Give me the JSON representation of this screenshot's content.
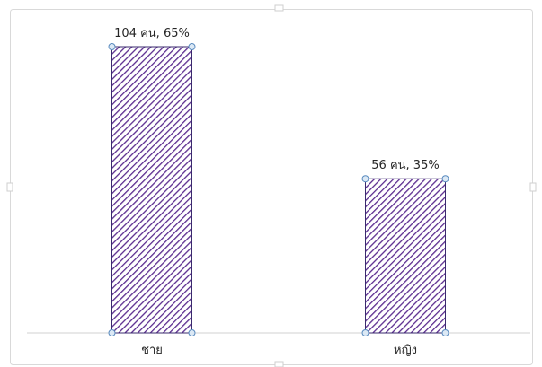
{
  "chart_data": {
    "type": "bar",
    "title": "",
    "xlabel": "",
    "ylabel": "",
    "categories": [
      "ชาย",
      "หญิง"
    ],
    "values": [
      104,
      56
    ],
    "data_labels": [
      "104 คน, 65%",
      "56 คน, 35%"
    ],
    "ylim": [
      0,
      104
    ],
    "grid": false,
    "legend": "none",
    "bar_pattern": "diagonal-stripes",
    "colors": {
      "bar_stripe": "#5b2c8f",
      "bar_background": "#ffffff",
      "bar_border": "#3a2a6e",
      "axis_line": "#d0d0d0",
      "selection_handle_fill": "#dce9f5",
      "selection_handle_stroke": "#5a8bbf",
      "frame_border": "#d9d9d9"
    }
  }
}
